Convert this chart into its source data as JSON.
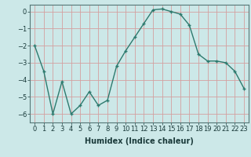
{
  "x": [
    0,
    1,
    2,
    3,
    4,
    5,
    6,
    7,
    8,
    9,
    10,
    11,
    12,
    13,
    14,
    15,
    16,
    17,
    18,
    19,
    20,
    21,
    22,
    23
  ],
  "y": [
    -2.0,
    -3.5,
    -6.0,
    -4.1,
    -6.0,
    -5.5,
    -4.7,
    -5.5,
    -5.2,
    -3.2,
    -2.3,
    -1.5,
    -0.7,
    0.1,
    0.15,
    0.0,
    -0.15,
    -0.8,
    -2.5,
    -2.9,
    -2.9,
    -3.0,
    -3.5,
    -4.5
  ],
  "line_color": "#2d7a6e",
  "marker": "+",
  "marker_size": 3,
  "bg_color": "#cce8e8",
  "grid_color": "#d4a0a0",
  "xlabel": "Humidex (Indice chaleur)",
  "xlabel_fontsize": 7,
  "tick_fontsize": 6,
  "ylim": [
    -6.5,
    0.4
  ],
  "xlim": [
    -0.5,
    23.5
  ],
  "yticks": [
    0,
    -1,
    -2,
    -3,
    -4,
    -5,
    -6
  ],
  "xtick_labels": [
    "0",
    "1",
    "2",
    "3",
    "4",
    "5",
    "6",
    "7",
    "8",
    "9",
    "10",
    "11",
    "12",
    "13",
    "14",
    "15",
    "16",
    "17",
    "18",
    "19",
    "20",
    "21",
    "22",
    "23"
  ],
  "linewidth": 1.0,
  "fig_width": 3.2,
  "fig_height": 2.0,
  "dpi": 100
}
